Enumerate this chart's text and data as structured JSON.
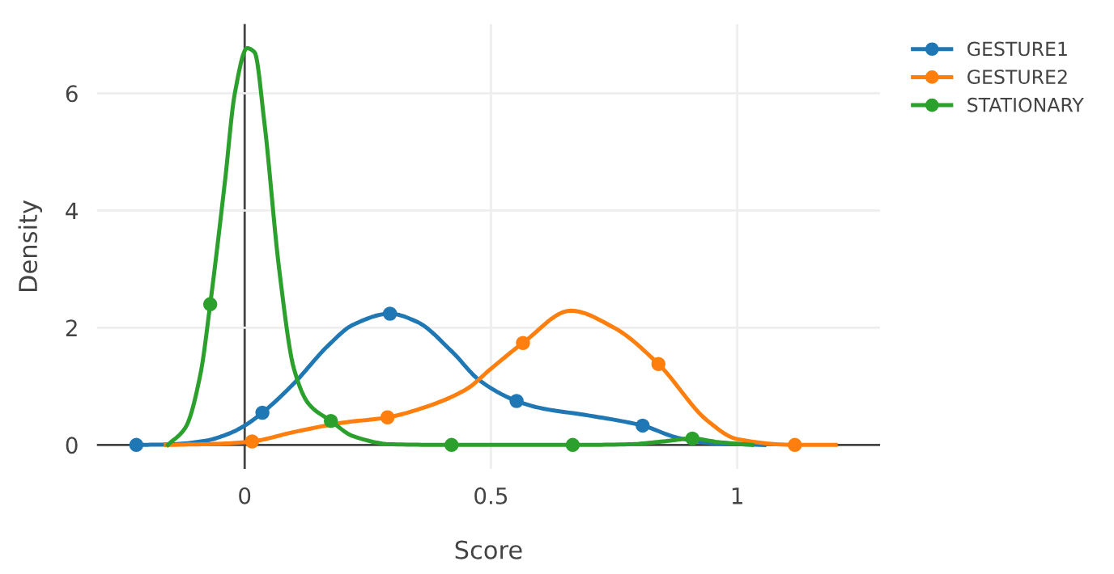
{
  "chart_data": {
    "type": "line",
    "xlabel": "Score",
    "ylabel": "Density",
    "xlim": [
      -0.3,
      1.29
    ],
    "ylim": [
      -0.41,
      7.18
    ],
    "xticks": [
      0,
      0.5,
      1
    ],
    "yticks": [
      0,
      2,
      4,
      6
    ],
    "grid": true,
    "legend": "top right",
    "line_style": "solid",
    "series": [
      {
        "name": "GESTURE1",
        "color": "#1f77b4",
        "x": [
          -0.22,
          -0.15,
          -0.08,
          -0.03,
          0,
          0.036,
          0.1,
          0.17,
          0.22,
          0.295,
          0.35,
          0.42,
          0.477,
          0.552,
          0.6,
          0.7,
          0.808,
          0.88,
          0.95,
          1.055
        ],
        "values": [
          0,
          0.01,
          0.07,
          0.2,
          0.33,
          0.55,
          1.05,
          1.7,
          2.05,
          2.24,
          2.1,
          1.6,
          1.1,
          0.75,
          0.63,
          0.5,
          0.33,
          0.12,
          0.03,
          0
        ]
      },
      {
        "name": "GESTURE2",
        "color": "#ff7f0e",
        "x": [
          -0.16,
          -0.05,
          0.015,
          0.1,
          0.2,
          0.29,
          0.35,
          0.45,
          0.5,
          0.565,
          0.662,
          0.75,
          0.84,
          0.94,
          1.0,
          1.117,
          1.2
        ],
        "values": [
          0,
          0.02,
          0.06,
          0.22,
          0.38,
          0.47,
          0.6,
          0.95,
          1.3,
          1.74,
          2.29,
          2.0,
          1.38,
          0.41,
          0.1,
          0,
          0
        ]
      },
      {
        "name": "STATIONARY",
        "color": "#2ca02c",
        "x": [
          -0.156,
          -0.12,
          -0.09,
          -0.07,
          -0.04,
          -0.02,
          0.005,
          0.02,
          0.04,
          0.07,
          0.1,
          0.13,
          0.175,
          0.22,
          0.3,
          0.42,
          0.666,
          0.78,
          0.85,
          0.909,
          0.96,
          1.03
        ],
        "values": [
          0,
          0.3,
          1.2,
          2.4,
          4.5,
          6.0,
          6.77,
          6.7,
          5.5,
          3.0,
          1.3,
          0.7,
          0.41,
          0.15,
          0.01,
          0,
          0,
          0.01,
          0.06,
          0.11,
          0.05,
          0
        ]
      },
      {
        "type": "scatter",
        "marker": "circle",
        "color": "#1f77b4",
        "x": [
          -0.22,
          0.036,
          0.295,
          0.552,
          0.808
        ],
        "values": [
          0,
          0.55,
          2.24,
          0.75,
          0.33
        ]
      },
      {
        "type": "scatter",
        "marker": "circle",
        "color": "#ff7f0e",
        "x": [
          0.015,
          0.29,
          0.565,
          0.84,
          1.117
        ],
        "values": [
          0.06,
          0.47,
          1.74,
          1.38,
          0
        ]
      },
      {
        "type": "scatter",
        "marker": "circle",
        "color": "#2ca02c",
        "x": [
          -0.07,
          0.175,
          0.42,
          0.666,
          0.909
        ],
        "values": [
          2.4,
          0.41,
          0,
          0,
          0.11
        ]
      }
    ]
  }
}
